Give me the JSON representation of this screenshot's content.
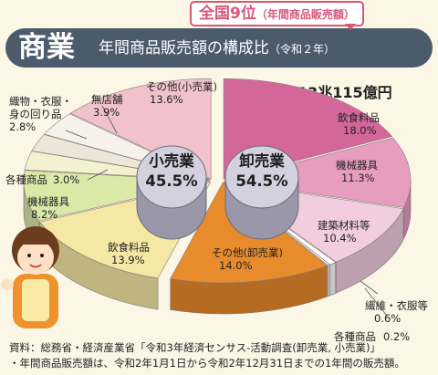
{
  "header": {
    "rank_badge": "全国9位",
    "rank_badge_sub": "（年間商品販売額）",
    "title_main": "商業",
    "title_sub": "年間商品販売額の構成比",
    "title_sub_year": "（令和２年）"
  },
  "total": {
    "label": "総額",
    "value": "13兆115億円"
  },
  "center_labels": {
    "retail": {
      "name": "小売業",
      "value": "45.5%"
    },
    "wholesale": {
      "name": "卸売業",
      "value": "54.5%"
    }
  },
  "chart_data": {
    "type": "pie",
    "groups": [
      {
        "name": "卸売業",
        "value": 54.5
      },
      {
        "name": "小売業",
        "value": 45.5
      }
    ],
    "segments": [
      {
        "group": "卸売業",
        "name": "飲食料品",
        "value": 18.0,
        "display": "18.0%",
        "color": "#d4679a"
      },
      {
        "group": "卸売業",
        "name": "機械器具",
        "value": 11.3,
        "display": "11.3%",
        "color": "#e69dc0"
      },
      {
        "group": "卸売業",
        "name": "建築材料等",
        "value": 10.4,
        "display": "10.4%",
        "color": "#f2cde0"
      },
      {
        "group": "卸売業",
        "name": "繊維・衣服等",
        "value": 0.6,
        "display": "0.6%",
        "color": "#ffffff"
      },
      {
        "group": "卸売業",
        "name": "各種商品",
        "value": 0.2,
        "display": "0.2%",
        "color": "#ffffff"
      },
      {
        "group": "卸売業",
        "name": "その他(卸売業)",
        "value": 14.0,
        "display": "14.0%",
        "color": "#e88b2c"
      },
      {
        "group": "小売業",
        "name": "飲食料品",
        "value": 13.9,
        "display": "13.9%",
        "color": "#f4e8a4"
      },
      {
        "group": "小売業",
        "name": "機械器具",
        "value": 8.2,
        "display": "8.2%",
        "color": "#dbe8a8"
      },
      {
        "group": "小売業",
        "name": "各種商品",
        "value": 3.0,
        "display": "3.0%",
        "color": "#f3f1d0"
      },
      {
        "group": "小売業",
        "name": "織物・衣服・身の回り品",
        "value": 2.8,
        "display": "2.8%",
        "color": "#ece6d8"
      },
      {
        "group": "小売業",
        "name": "無店舗",
        "value": 3.9,
        "display": "3.9%",
        "color": "#f6f2ea"
      },
      {
        "group": "小売業",
        "name": "その他(小売業)",
        "value": 13.6,
        "display": "13.6%",
        "color": "#f1c2cb"
      }
    ]
  },
  "labels": {
    "w_food": {
      "name": "飲食料品",
      "value": "18.0%"
    },
    "w_machine": {
      "name": "機械器具",
      "value": "11.3%"
    },
    "w_building": {
      "name": "建築材料等",
      "value": "10.4%"
    },
    "w_textile": {
      "name": "繊維・衣服等",
      "value": "0.6%"
    },
    "w_general": {
      "name": "各種商品",
      "value": "0.2%"
    },
    "w_other": {
      "name": "その他(卸売業)",
      "value": "14.0%"
    },
    "r_food": {
      "name": "飲食料品",
      "value": "13.9%"
    },
    "r_machine": {
      "name": "機械器具",
      "value": "8.2%"
    },
    "r_general": {
      "name": "各種商品",
      "value": "3.0%"
    },
    "r_textile_1": "織物・衣服・",
    "r_textile_2": "身の回り品",
    "r_textile_value": "2.8%",
    "r_nonstore": {
      "name": "無店舗",
      "value": "3.9%"
    },
    "r_other": {
      "name": "その他(小売業)",
      "value": "13.6%"
    }
  },
  "source": {
    "line1": "資料：総務省・経済産業省「令和3年経済センサス-活動調査(卸売業, 小売業)」",
    "line2": "・年間商品販売額は、令和2年1月1日から令和2年12月31日までの1年間の販売額。"
  },
  "colors": {
    "title_bg": "#4c5b6c",
    "accent": "#d8577c",
    "background": "#fbf6e6"
  }
}
